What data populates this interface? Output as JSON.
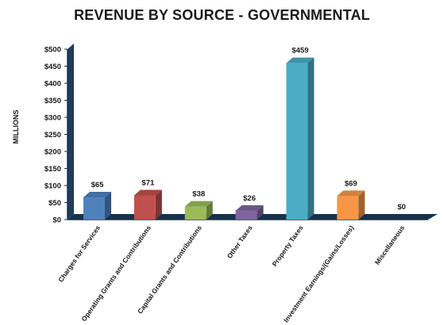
{
  "chart_data": {
    "type": "bar",
    "title": "REVENUE BY SOURCE - GOVERNMENTAL",
    "ylabel": "MILLIONS",
    "xlabel": "",
    "ylim": [
      0,
      500
    ],
    "yticks": [
      "$0",
      "$50",
      "$100",
      "$150",
      "$200",
      "$250",
      "$300",
      "$350",
      "$400",
      "$450",
      "$500"
    ],
    "categories": [
      "Charges for Services",
      "Operating Grants and Contributions",
      "Capital Grants and Contributions",
      "Other Taxes",
      "Property Taxes",
      "Investment Earnings/(Gains/Losses)",
      "Miscellaneous"
    ],
    "values": [
      65,
      71,
      38,
      26,
      459,
      69,
      0
    ],
    "value_labels": [
      "$65",
      "$71",
      "$38",
      "$26",
      "$459",
      "$69",
      "$0"
    ],
    "colors": [
      "#4F81BD",
      "#C0504D",
      "#9BBB59",
      "#8064A2",
      "#4BACC6",
      "#F79646",
      "#4F81BD"
    ],
    "grid": false,
    "style": "3d-column"
  }
}
